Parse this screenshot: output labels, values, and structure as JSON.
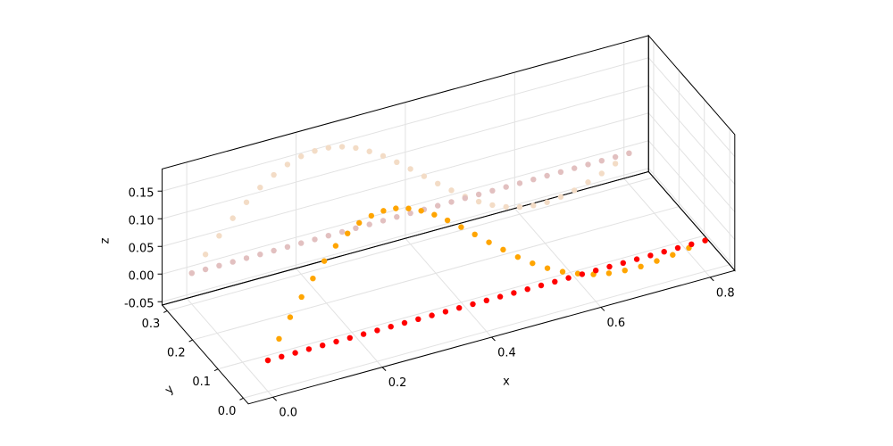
{
  "chart_data": {
    "type": "scatter3d",
    "x_label": "x",
    "y_label": "y",
    "z_label": "z",
    "xlim": [
      -0.045,
      0.845
    ],
    "ylim": [
      -0.02,
      0.32
    ],
    "zlim": [
      -0.056,
      0.19
    ],
    "xticks": [
      {
        "value": 0,
        "label": "0.0"
      },
      0.2,
      0.4,
      0.6,
      0.8
    ],
    "yticks": [
      {
        "value": 0,
        "label": "0.0"
      },
      0.1,
      0.2,
      0.3
    ],
    "zticks": [
      -0.05,
      {
        "value": 0,
        "label": "0.00"
      },
      0.05,
      {
        "value": 0.1,
        "label": "0.10"
      },
      0.15
    ],
    "grid": true,
    "x": [
      0,
      0.025,
      0.05,
      0.075,
      0.1,
      0.125,
      0.15,
      0.175,
      0.2,
      0.225,
      0.25,
      0.275,
      0.3,
      0.325,
      0.35,
      0.375,
      0.4,
      0.425,
      0.45,
      0.475,
      0.5,
      0.525,
      0.55,
      0.575,
      0.6,
      0.625,
      0.65,
      0.675,
      0.7,
      0.725,
      0.75,
      0.775,
      0.8
    ],
    "series": [
      {
        "color": "#f3dcc6",
        "y": [
          0.3,
          0.3,
          0.3,
          0.3,
          0.3,
          0.3,
          0.3,
          0.3,
          0.3,
          0.3,
          0.3,
          0.3,
          0.3,
          0.3,
          0.3,
          0.3,
          0.3,
          0.3,
          0.3,
          0.3,
          0.3,
          0.3,
          0.3,
          0.3,
          0.3,
          0.3,
          0.3,
          0.3,
          0.3,
          0.3,
          0.3,
          0.3,
          0.3
        ],
        "z": [
          0,
          0.027,
          0.054,
          0.079,
          0.101,
          0.121,
          0.137,
          0.149,
          0.157,
          0.16,
          0.159,
          0.154,
          0.145,
          0.132,
          0.117,
          0.099,
          0.08,
          0.06,
          0.04,
          0.021,
          0.003,
          -0.013,
          -0.026,
          -0.036,
          -0.043,
          -0.047,
          -0.048,
          -0.045,
          -0.04,
          -0.032,
          -0.023,
          -0.012,
          0
        ]
      },
      {
        "color": "#e2c0c0",
        "y": [
          0.3,
          0.3,
          0.3,
          0.3,
          0.3,
          0.3,
          0.3,
          0.3,
          0.3,
          0.3,
          0.3,
          0.3,
          0.3,
          0.3,
          0.3,
          0.3,
          0.3,
          0.3,
          0.3,
          0.3,
          0.3,
          0.3,
          0.3,
          0.3,
          0.3,
          0.3,
          0.3,
          0.3,
          0.3,
          0.3,
          0.3,
          0.3,
          0.3
        ],
        "z": [
          0,
          0,
          0,
          0,
          0,
          0,
          0,
          0,
          0,
          0,
          0,
          0,
          0,
          0,
          0,
          0,
          0,
          0,
          0,
          0,
          0,
          0,
          0,
          0,
          0,
          0,
          0,
          0,
          0,
          0,
          0,
          0,
          0
        ]
      },
      {
        "color": "#ffa500",
        "y": [
          0,
          0.01,
          0.02,
          0.029,
          0.038,
          0.047,
          0.056,
          0.063,
          0.071,
          0.077,
          0.083,
          0.088,
          0.092,
          0.096,
          0.098,
          0.1,
          0.1,
          0.1,
          0.098,
          0.096,
          0.092,
          0.088,
          0.083,
          0.077,
          0.071,
          0.063,
          0.056,
          0.047,
          0.038,
          0.029,
          0.02,
          0.01,
          0
        ],
        "z": [
          0,
          0.027,
          0.054,
          0.079,
          0.101,
          0.121,
          0.137,
          0.149,
          0.157,
          0.16,
          0.159,
          0.154,
          0.145,
          0.132,
          0.117,
          0.099,
          0.08,
          0.06,
          0.04,
          0.021,
          0.003,
          -0.013,
          -0.026,
          -0.036,
          -0.043,
          -0.047,
          -0.048,
          -0.045,
          -0.04,
          -0.032,
          -0.023,
          -0.012,
          0
        ]
      },
      {
        "color": "#ff0000",
        "y": [
          0,
          0,
          0,
          0,
          0,
          0,
          0,
          0,
          0,
          0,
          0,
          0,
          0,
          0,
          0,
          0,
          0,
          0,
          0,
          0,
          0,
          0,
          0,
          0,
          0,
          0,
          0,
          0,
          0,
          0,
          0,
          0,
          0
        ],
        "z": [
          0,
          0,
          0,
          0,
          0,
          0,
          0,
          0,
          0,
          0,
          0,
          0,
          0,
          0,
          0,
          0,
          0,
          0,
          0,
          0,
          0,
          0,
          0,
          0,
          0,
          0,
          0,
          0,
          0,
          0,
          0,
          0,
          0
        ]
      }
    ]
  }
}
